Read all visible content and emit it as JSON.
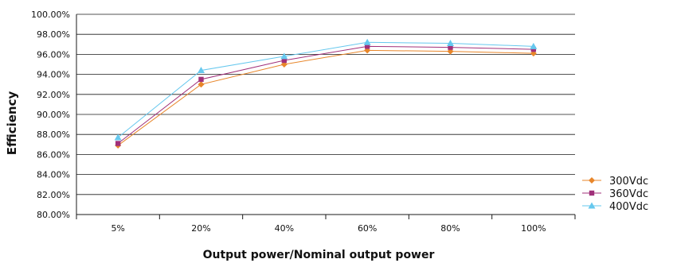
{
  "chart_data": {
    "type": "line",
    "title": "",
    "xlabel": "Output power/Nominal output power",
    "ylabel": "Efficiency",
    "categories": [
      "5%",
      "20%",
      "40%",
      "60%",
      "80%",
      "100%"
    ],
    "ylim": [
      80,
      100
    ],
    "yticks": [
      "80.00%",
      "82.00%",
      "84.00%",
      "86.00%",
      "88.00%",
      "90.00%",
      "92.00%",
      "94.00%",
      "96.00%",
      "98.00%",
      "100.00%"
    ],
    "grid": true,
    "legend_position": "bottom-right",
    "series": [
      {
        "name": "300Vdc",
        "color": "#E8862A",
        "marker": "diamond",
        "values": [
          86.9,
          93.0,
          95.0,
          96.4,
          96.3,
          96.1
        ]
      },
      {
        "name": "360Vdc",
        "color": "#A0307A",
        "marker": "square",
        "values": [
          87.1,
          93.5,
          95.4,
          96.8,
          96.7,
          96.5
        ]
      },
      {
        "name": "400Vdc",
        "color": "#66C8EE",
        "marker": "triangle",
        "values": [
          87.7,
          94.4,
          95.8,
          97.2,
          97.1,
          96.8
        ]
      }
    ]
  }
}
